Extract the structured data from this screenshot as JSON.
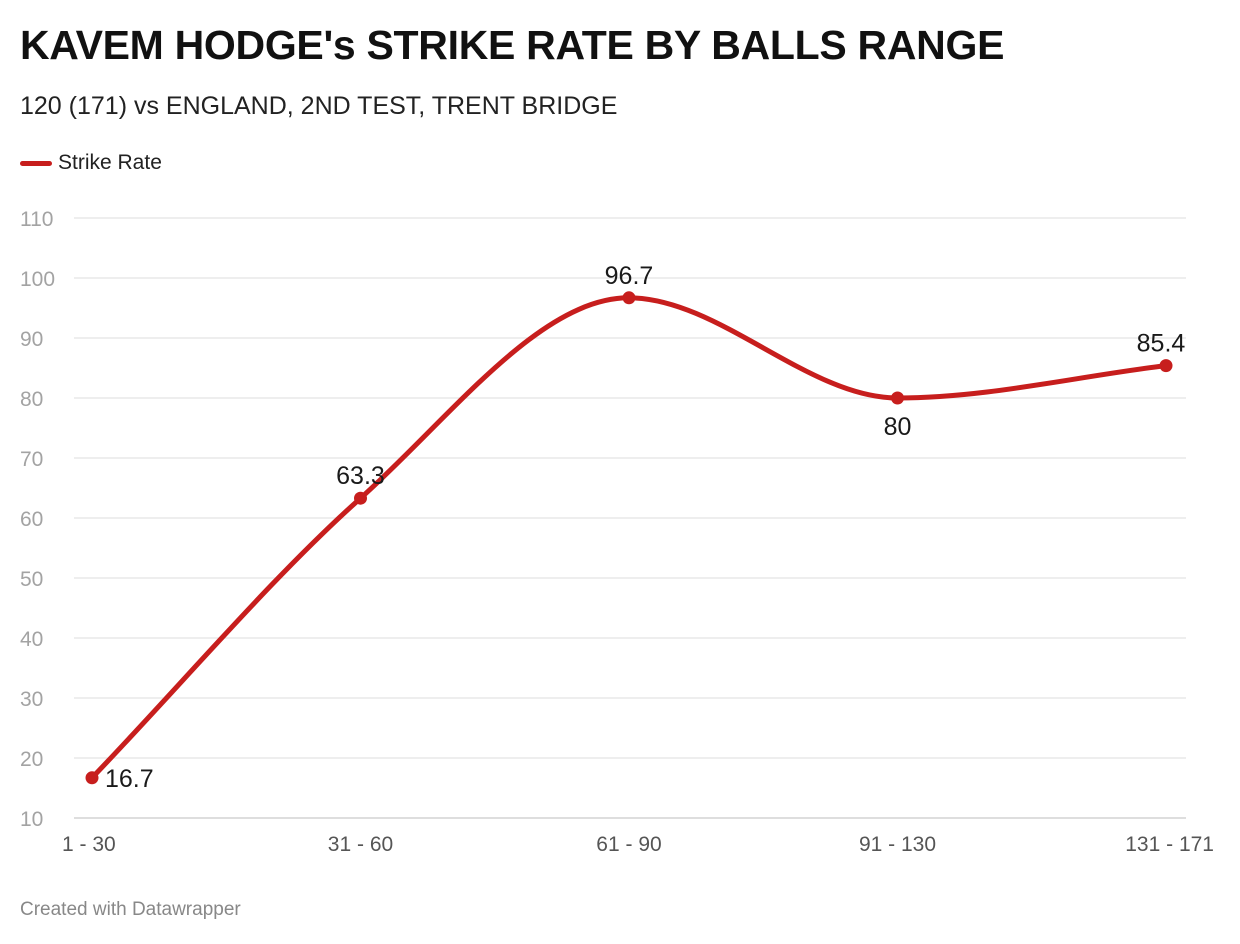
{
  "chart_data": {
    "type": "line",
    "title": "KAVEM HODGE's STRIKE RATE BY BALLS RANGE",
    "subtitle": "120 (171) vs ENGLAND, 2ND TEST, TRENT BRIDGE",
    "categories": [
      "1 - 30",
      "31 - 60",
      "61 - 90",
      "91 - 130",
      "131 - 171"
    ],
    "series": [
      {
        "name": "Strike Rate",
        "values": [
          16.7,
          63.3,
          96.7,
          80,
          85.4
        ],
        "labels": [
          "16.7",
          "63.3",
          "96.7",
          "80",
          "85.4"
        ],
        "color": "#c71e1d"
      }
    ],
    "ylim": [
      10,
      110
    ],
    "yticks": [
      10,
      20,
      30,
      40,
      50,
      60,
      70,
      80,
      90,
      100,
      110
    ],
    "xlabel": "",
    "ylabel": "",
    "grid": true,
    "legend": "top-left"
  },
  "footer": "Created with Datawrapper"
}
